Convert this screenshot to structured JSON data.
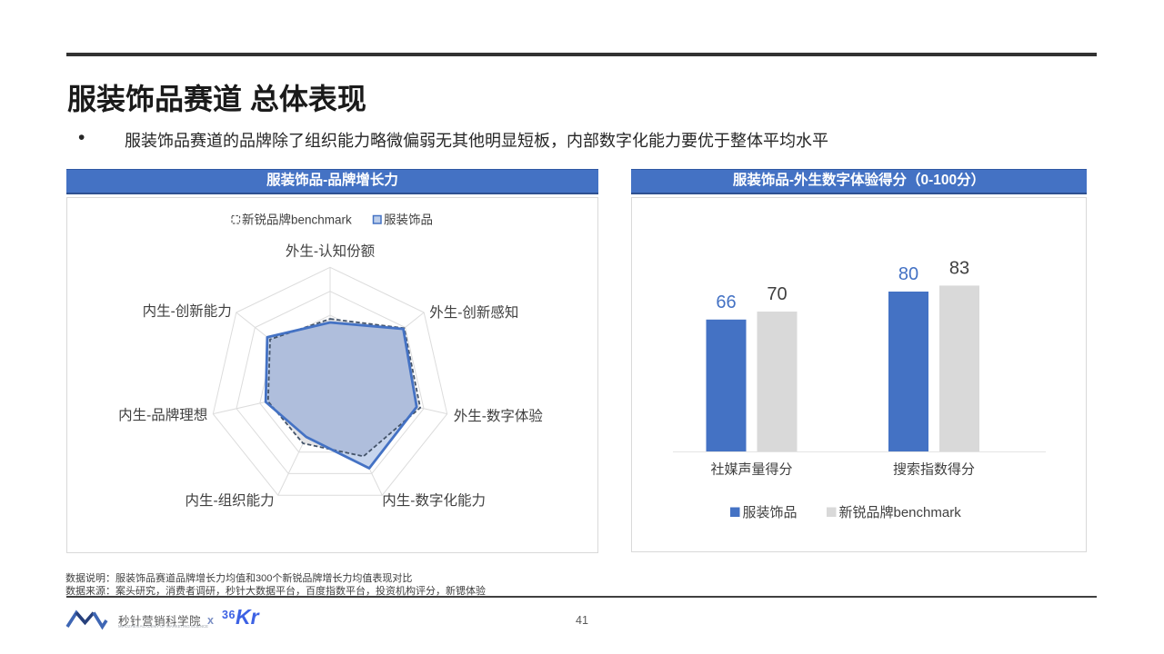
{
  "slide": {
    "title": "服装饰品赛道 总体表现",
    "bullet_marker": "•",
    "bullet": "服装饰品赛道的品牌除了组织能力略微偏弱无其他明显短板，内部数字化能力要优于整体平均水平",
    "page_number": "41"
  },
  "notes": {
    "line1": "数据说明：服装饰品赛道品牌增长力均值和300个新锐品牌增长力均值表现对比",
    "line2": "数据来源：案头研究，消费者调研，秒针大数据平台，百度指数平台，投资机构评分，新锶体验"
  },
  "footer": {
    "brand_name": "秒针营销科学院",
    "brand_subtitle": "MIAOZHEN ACADEMY OF MARKETING SCIENCE",
    "separator": "x",
    "partner_logo_36": "36",
    "partner_logo_kr": "Kr"
  },
  "colors": {
    "header_blue": "#4472C4",
    "series_blue": "#4472C4",
    "series_gray": "#D9D9D9",
    "benchmark_line": "#44546A",
    "grid_gray": "#DCDCDC",
    "text_dark": "#404040",
    "rule_dark": "#323232"
  },
  "chart_data": [
    {
      "type": "radar",
      "panel_title": "服装饰品-品牌增长力",
      "axes": [
        "外生-认知份额",
        "外生-创新感知",
        "外生-数字体验",
        "内生-数字化能力",
        "内生-组织能力",
        "内生-品牌理想",
        "内生-创新能力"
      ],
      "series": [
        {
          "name": "新锐品牌benchmark",
          "values": [
            0.57,
            0.79,
            0.77,
            0.64,
            0.52,
            0.53,
            0.64
          ],
          "style": "dashed",
          "color": "#44546A",
          "fill": "#E3E3E5"
        },
        {
          "name": "服装饰品",
          "values": [
            0.54,
            0.78,
            0.74,
            0.75,
            0.46,
            0.55,
            0.67
          ],
          "style": "solid",
          "color": "#4472C4",
          "fill": "#C7D5ED"
        }
      ],
      "rmax": 1.0,
      "grid_rings": 5,
      "overlap_fill": "#AFBEDC",
      "grid": true,
      "legend_position": "top"
    },
    {
      "type": "bar",
      "panel_title": "服装饰品-外生数字体验得分（0-100分）",
      "categories": [
        "社媒声量得分",
        "搜索指数得分"
      ],
      "series": [
        {
          "name": "服装饰品",
          "values": [
            66,
            80
          ],
          "color": "#4472C4",
          "label_color": "#4472C4"
        },
        {
          "name": "新锐品牌benchmark",
          "values": [
            70,
            83
          ],
          "color": "#D9D9D9",
          "label_color": "#404040"
        }
      ],
      "ylim": [
        0,
        100
      ],
      "grid": false,
      "legend_position": "bottom"
    }
  ]
}
